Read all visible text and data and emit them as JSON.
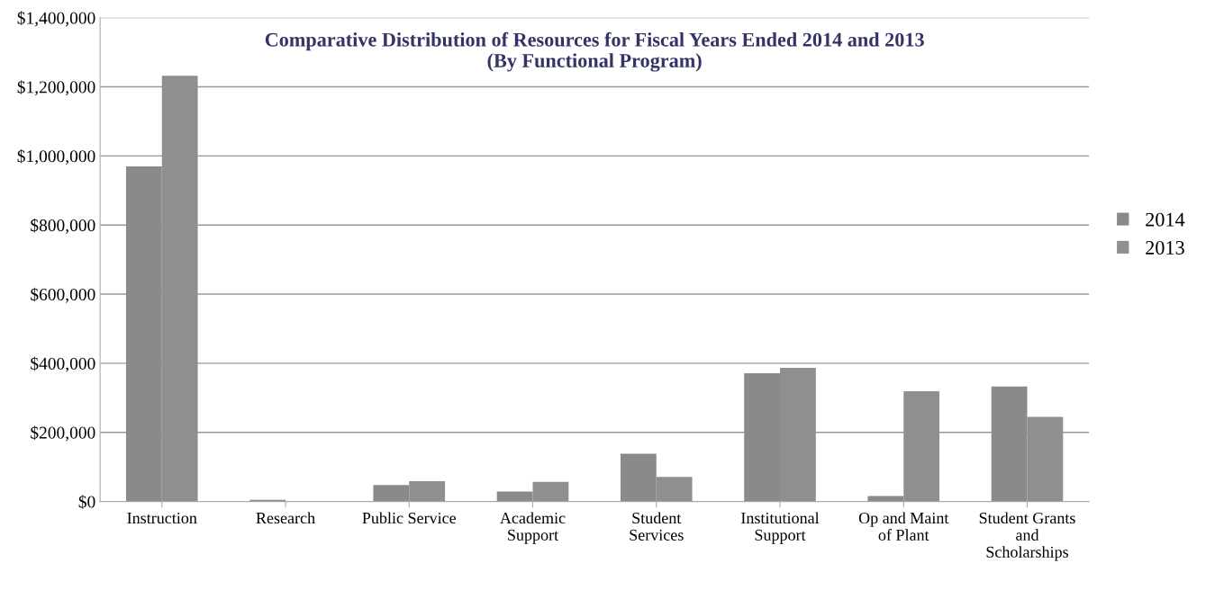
{
  "chart_data": {
    "type": "bar",
    "title": "Comparative Distribution of Resources for Fiscal Years Ended 2014 and 2013\n(By Functional Program)",
    "categories": [
      "Instruction",
      "Research",
      "Public Service",
      "Academic\nSupport",
      "Student\nServices",
      "Institutional\nSupport",
      "Op and Maint\nof Plant",
      "Student Grants\nand\nScholarships"
    ],
    "series": [
      {
        "name": "2014",
        "color": "#8a8a8a",
        "values": [
          970000,
          5000,
          48000,
          29000,
          138000,
          371000,
          16000,
          333000
        ]
      },
      {
        "name": "2013",
        "color": "#8f8f8f",
        "values": [
          1232000,
          0,
          59000,
          57000,
          71000,
          387000,
          319000,
          245000
        ]
      }
    ],
    "ylim": [
      0,
      1400000
    ],
    "yticks": [
      {
        "value": 0,
        "label": "$0"
      },
      {
        "value": 200000,
        "label": "$200,000"
      },
      {
        "value": 400000,
        "label": "$400,000"
      },
      {
        "value": 600000,
        "label": "$600,000"
      },
      {
        "value": 800000,
        "label": "$800,000"
      },
      {
        "value": 1000000,
        "label": "$1,000,000"
      },
      {
        "value": 1200000,
        "label": "$1,200,000"
      },
      {
        "value": 1400000,
        "label": "$1,400,000"
      }
    ],
    "grid": "y",
    "legend": "right"
  }
}
